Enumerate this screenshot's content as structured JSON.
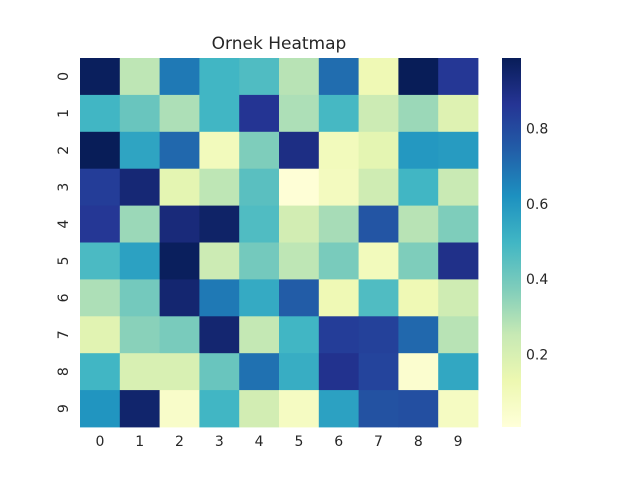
{
  "chart_data": {
    "type": "heatmap",
    "title": "Ornek Heatmap",
    "xlabel": "",
    "ylabel": "",
    "x_categories": [
      "0",
      "1",
      "2",
      "3",
      "4",
      "5",
      "6",
      "7",
      "8",
      "9"
    ],
    "y_categories": [
      "0",
      "1",
      "2",
      "3",
      "4",
      "5",
      "6",
      "7",
      "8",
      "9"
    ],
    "values": [
      [
        0.98,
        0.27,
        0.68,
        0.5,
        0.47,
        0.28,
        0.71,
        0.12,
        0.99,
        0.86
      ],
      [
        0.5,
        0.42,
        0.3,
        0.5,
        0.87,
        0.3,
        0.49,
        0.24,
        0.33,
        0.18
      ],
      [
        0.99,
        0.56,
        0.72,
        0.1,
        0.38,
        0.9,
        0.1,
        0.16,
        0.6,
        0.59
      ],
      [
        0.84,
        0.93,
        0.16,
        0.27,
        0.45,
        0.02,
        0.09,
        0.23,
        0.5,
        0.25
      ],
      [
        0.86,
        0.33,
        0.92,
        0.96,
        0.47,
        0.22,
        0.31,
        0.77,
        0.28,
        0.38
      ],
      [
        0.48,
        0.57,
        0.98,
        0.24,
        0.4,
        0.27,
        0.39,
        0.1,
        0.38,
        0.89
      ],
      [
        0.3,
        0.4,
        0.94,
        0.68,
        0.54,
        0.75,
        0.12,
        0.47,
        0.12,
        0.23
      ],
      [
        0.17,
        0.36,
        0.39,
        0.94,
        0.26,
        0.5,
        0.84,
        0.83,
        0.72,
        0.28
      ],
      [
        0.5,
        0.2,
        0.2,
        0.42,
        0.7,
        0.53,
        0.88,
        0.82,
        0.04,
        0.55
      ],
      [
        0.61,
        0.95,
        0.06,
        0.5,
        0.22,
        0.08,
        0.57,
        0.78,
        0.79,
        0.08
      ]
    ],
    "colormap": "YlGnBu",
    "colorbar_range": [
      0.01,
      0.99
    ],
    "colorbar_ticks": [
      "0.2",
      "0.4",
      "0.6",
      "0.8"
    ],
    "colorbar_tick_values": [
      0.2,
      0.4,
      0.6,
      0.8
    ],
    "grid": false
  }
}
